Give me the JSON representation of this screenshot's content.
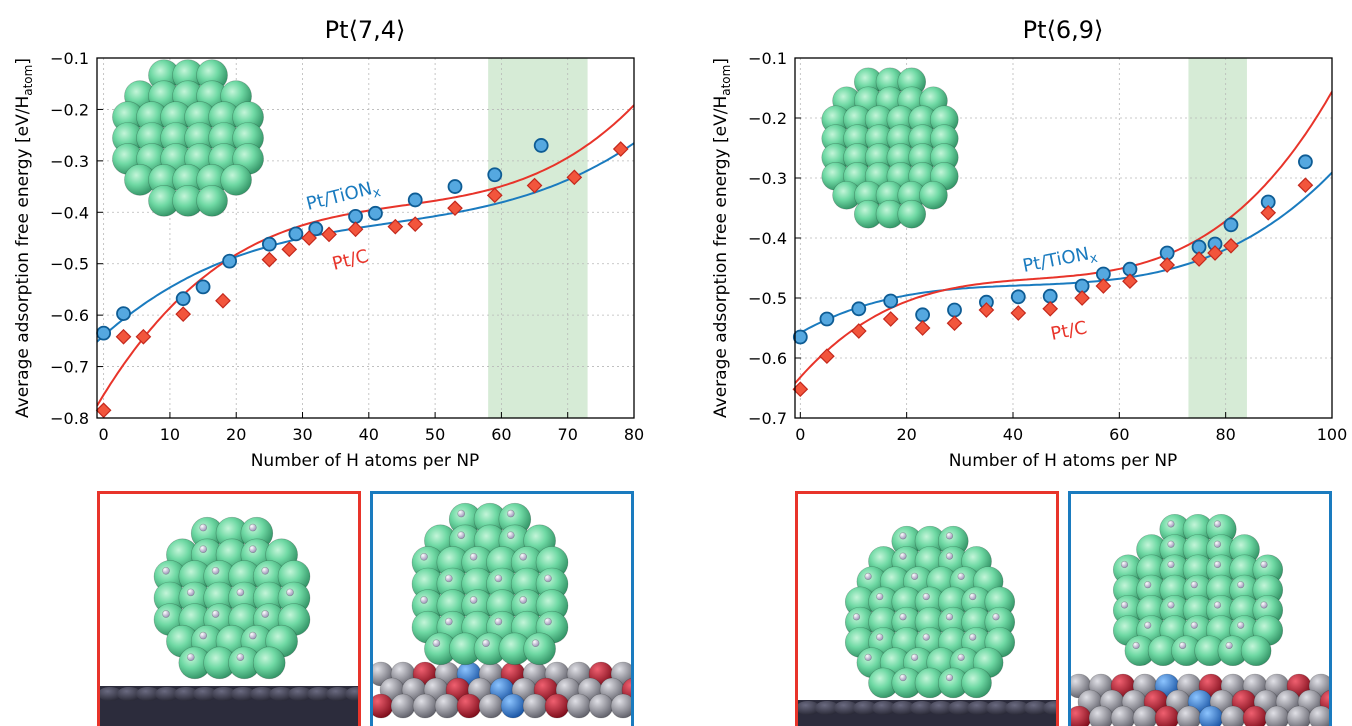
{
  "colors": {
    "pt_tion": "#1a7bbf",
    "pt_c": "#e8342a",
    "shade": "#cfe8cf",
    "pt_atom": "#5fcf98",
    "h_atom": "#dcd6ec",
    "carbon_support": "#3b3b4e",
    "tion_grey": "#8c8c96",
    "tion_red": "#b5122a",
    "tion_blue": "#2e7fd6"
  },
  "chart_data": [
    {
      "type": "scatter",
      "title": "Pt⟨7,4⟩",
      "xlabel": "Number of H atoms per NP",
      "ylabel": "Average adsorption free energy [eV/H",
      "ylabel_sub": "atom",
      "ylabel_end": "]",
      "xlim": [
        -1,
        80
      ],
      "ylim": [
        -0.8,
        -0.1
      ],
      "xticks": [
        0,
        10,
        20,
        30,
        40,
        50,
        60,
        70,
        80
      ],
      "yticks": [
        -0.8,
        -0.7,
        -0.6,
        -0.5,
        -0.4,
        -0.3,
        -0.2,
        -0.1
      ],
      "grid": true,
      "shaded_x_range": [
        58,
        73
      ],
      "series": [
        {
          "name": "Pt/TiON",
          "name_sub": "x",
          "marker": "circle",
          "color_key": "pt_tion",
          "x": [
            0,
            3,
            12,
            15,
            19,
            25,
            29,
            32,
            38,
            41,
            47,
            53,
            59,
            66
          ],
          "y": [
            -0.635,
            -0.597,
            -0.568,
            -0.545,
            -0.495,
            -0.462,
            -0.442,
            -0.432,
            -0.408,
            -0.402,
            -0.376,
            -0.35,
            -0.327,
            -0.27
          ],
          "fit": [
            -0.64,
            0.0114,
            -0.00022,
            1.7e-06
          ]
        },
        {
          "name": "Pt/C",
          "marker": "diamond",
          "color_key": "pt_c",
          "x": [
            0,
            3,
            6,
            12,
            18,
            25,
            28,
            31,
            34,
            38,
            44,
            47,
            53,
            59,
            65,
            71,
            78
          ],
          "y": [
            -0.785,
            -0.642,
            -0.642,
            -0.598,
            -0.572,
            -0.492,
            -0.472,
            -0.45,
            -0.443,
            -0.433,
            -0.428,
            -0.423,
            -0.392,
            -0.367,
            -0.348,
            -0.332,
            -0.277
          ],
          "fit": [
            -0.755,
            0.0208,
            -0.00042,
            3.1e-06
          ]
        }
      ]
    },
    {
      "type": "scatter",
      "title": "Pt⟨6,9⟩",
      "xlabel": "Number of H atoms per NP",
      "ylabel": "Average adsorption free energy [eV/H",
      "ylabel_sub": "atom",
      "ylabel_end": "]",
      "xlim": [
        -1,
        100
      ],
      "ylim": [
        -0.7,
        -0.1
      ],
      "xticks": [
        0,
        20,
        40,
        60,
        80,
        100
      ],
      "yticks": [
        -0.7,
        -0.6,
        -0.5,
        -0.4,
        -0.3,
        -0.2,
        -0.1
      ],
      "grid": true,
      "shaded_x_range": [
        73,
        84
      ],
      "series": [
        {
          "name": "Pt/TiON",
          "name_sub": "x",
          "marker": "circle",
          "color_key": "pt_tion",
          "x": [
            0,
            5,
            11,
            17,
            23,
            29,
            35,
            41,
            47,
            53,
            57,
            62,
            69,
            75,
            78,
            81,
            88,
            95
          ],
          "y": [
            -0.565,
            -0.535,
            -0.518,
            -0.505,
            -0.528,
            -0.52,
            -0.507,
            -0.498,
            -0.497,
            -0.48,
            -0.46,
            -0.452,
            -0.425,
            -0.415,
            -0.41,
            -0.378,
            -0.34,
            -0.273
          ],
          "fit": [
            -0.558,
            0.00497,
            -0.00011,
            8.7e-07
          ]
        },
        {
          "name": "Pt/C",
          "marker": "diamond",
          "color_key": "pt_c",
          "x": [
            0,
            5,
            11,
            17,
            23,
            29,
            35,
            41,
            47,
            53,
            57,
            62,
            69,
            75,
            78,
            81,
            88,
            95
          ],
          "y": [
            -0.652,
            -0.597,
            -0.555,
            -0.535,
            -0.55,
            -0.542,
            -0.52,
            -0.525,
            -0.518,
            -0.5,
            -0.48,
            -0.472,
            -0.445,
            -0.435,
            -0.425,
            -0.413,
            -0.358,
            -0.312
          ],
          "fit": [
            -0.632,
            0.00986,
            -0.000209,
            1.58e-06
          ]
        }
      ]
    }
  ]
}
